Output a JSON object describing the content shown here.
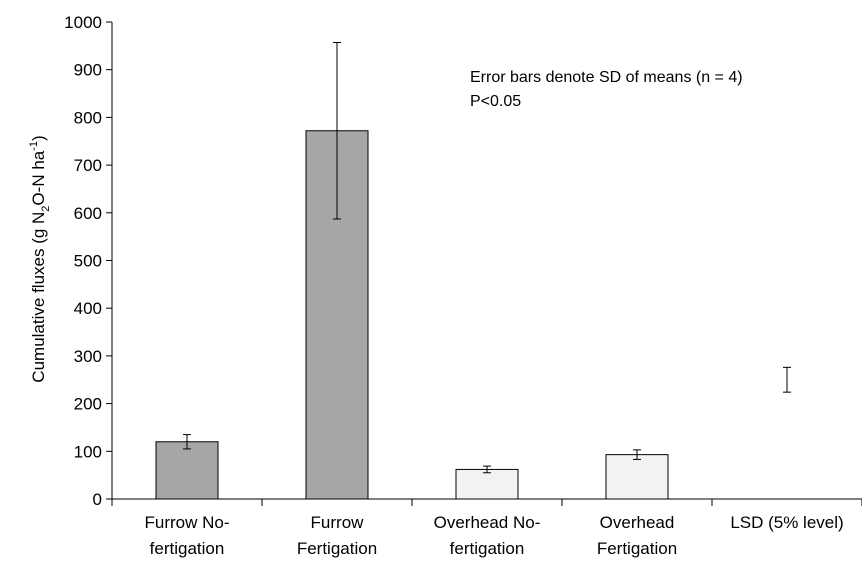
{
  "chart_data": {
    "type": "bar",
    "ylabel_parts": [
      "Cumulative fluxes (g N",
      "2",
      "O-N ha",
      "-1",
      ")"
    ],
    "xlabel": "",
    "ylim": [
      0,
      1000
    ],
    "yticks": [
      "0",
      "100",
      "200",
      "300",
      "400",
      "500",
      "600",
      "700",
      "800",
      "900",
      "1000"
    ],
    "categories": [
      [
        "Furrow No-",
        "fertigation"
      ],
      [
        "Furrow",
        "Fertigation"
      ],
      [
        "Overhead No-",
        "fertigation"
      ],
      [
        "Overhead",
        "Fertigation"
      ],
      [
        "LSD (5% level)"
      ]
    ],
    "values": [
      120,
      772,
      62,
      93,
      null
    ],
    "error_sd": [
      15,
      185,
      7,
      10,
      null
    ],
    "bar_colors": [
      "#a6a6a6",
      "#a6a6a6",
      "#f2f2f2",
      "#f2f2f2",
      null
    ],
    "lsd": {
      "center": 250,
      "half_width": 26
    },
    "annotations": [
      "Error bars denote SD of means (n = 4)",
      "P<0.05"
    ],
    "grid": false,
    "legend": "none"
  }
}
